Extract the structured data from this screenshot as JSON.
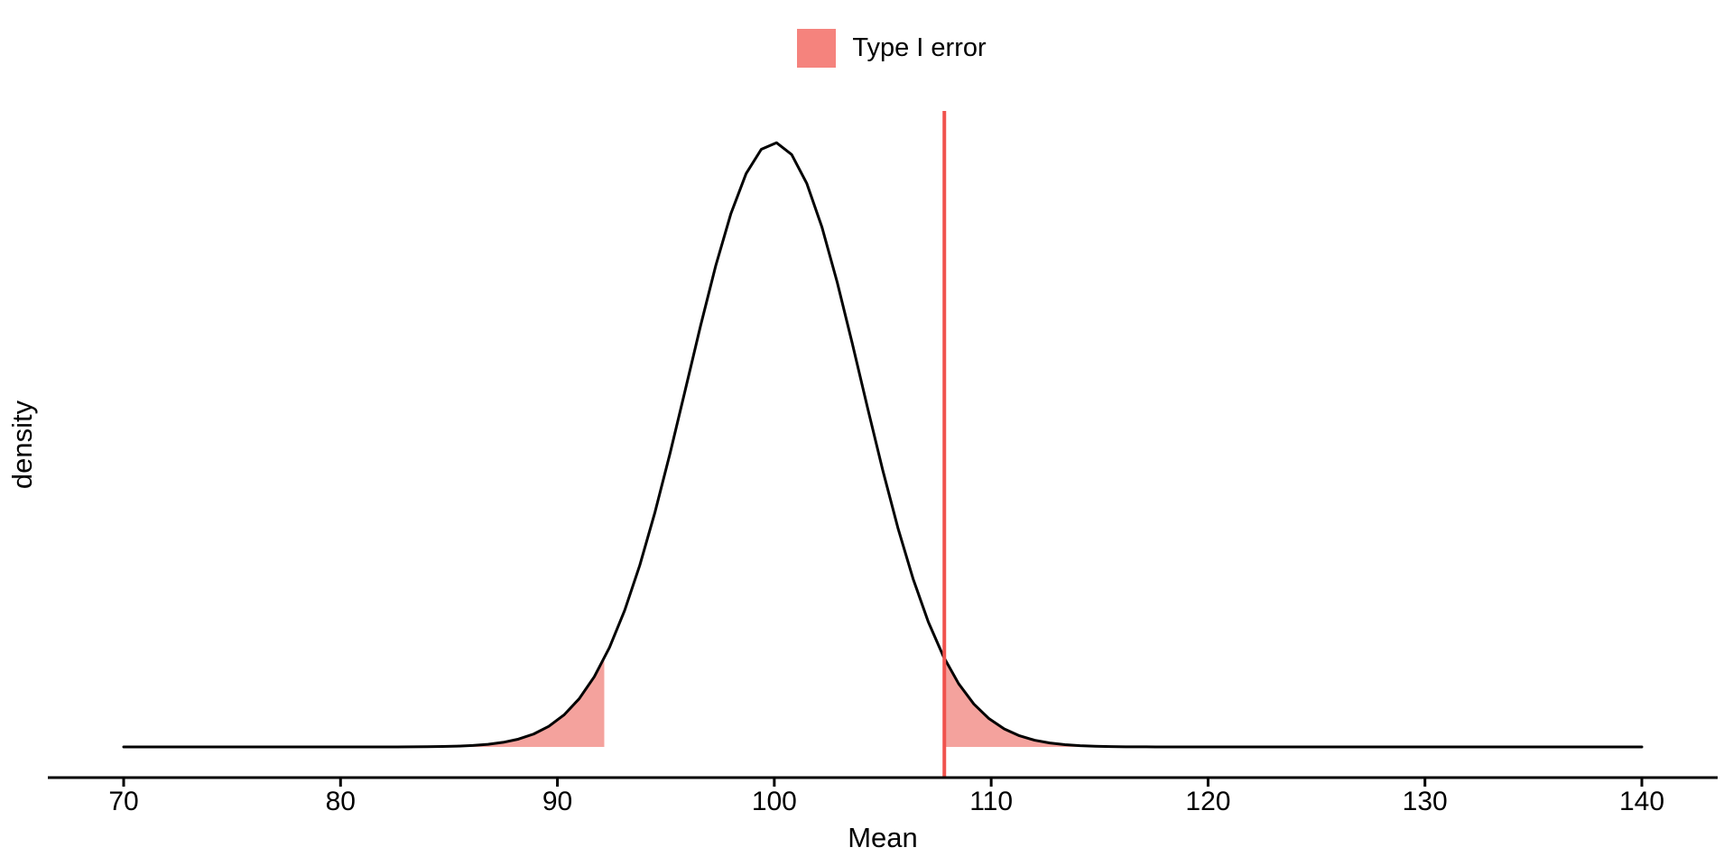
{
  "legend": {
    "items": [
      {
        "label": "Type I error",
        "swatch_color": "#F5837D"
      }
    ]
  },
  "chart_data": {
    "type": "area",
    "title": "",
    "xlabel": "Mean",
    "ylabel": "density",
    "x_ticks": [
      70,
      80,
      90,
      100,
      110,
      120,
      130,
      140
    ],
    "x_domain": [
      70,
      140
    ],
    "y_domain": [
      0,
      0.1047
    ],
    "grid": false,
    "legend_position": "top-center",
    "curve": {
      "distribution": "normal",
      "mean": 100,
      "sd": 4,
      "peak_density": 0.0997,
      "x_start": 70,
      "x_end": 140
    },
    "shaded_regions": [
      {
        "name": "left-tail",
        "from": 70,
        "to": 92.16
      },
      {
        "name": "right-tail",
        "from": 107.84,
        "to": 140
      }
    ],
    "vline": {
      "x": 107.84
    },
    "colors": {
      "curve": "#000000",
      "axis": "#000000",
      "text": "#000000",
      "area_fill": "#F4A29D",
      "vline": "#F0524D",
      "legend_swatch": "#F5837D"
    }
  }
}
